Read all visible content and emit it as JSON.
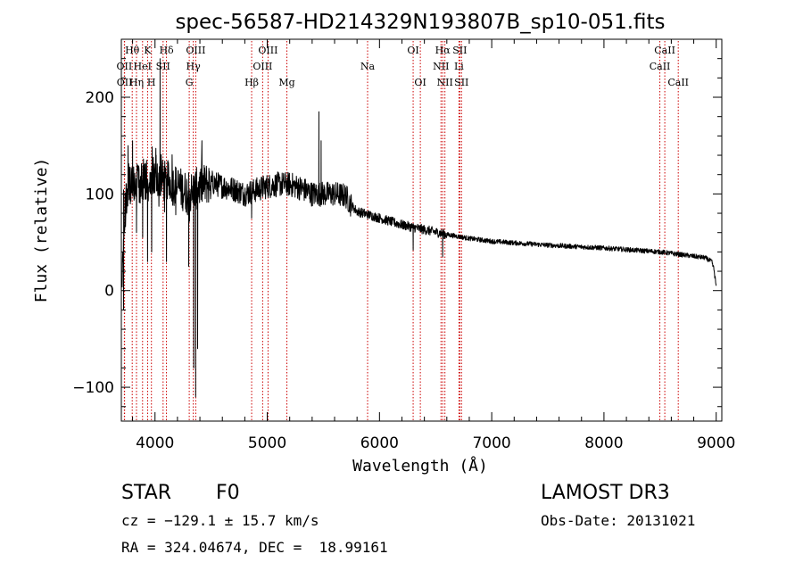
{
  "chart_data": {
    "type": "line",
    "title": "spec-56587-HD214329N193807B_sp10-051.fits",
    "xlabel": "Wavelength (Å)",
    "ylabel": "Flux (relative)",
    "xlim": [
      3700,
      9050
    ],
    "ylim": [
      -135,
      260
    ],
    "xticks": [
      4000,
      5000,
      6000,
      7000,
      8000,
      9000
    ],
    "yticks": [
      -100,
      0,
      100,
      200
    ],
    "xtick_labels": [
      "4000",
      "5000",
      "6000",
      "7000",
      "8000",
      "9000"
    ],
    "ytick_labels": [
      "−100",
      "0",
      "100",
      "200"
    ],
    "line_color": "#000000",
    "marker_color": "#cc0000",
    "series": [
      {
        "name": "flux",
        "continuum": [
          [
            3705,
            0
          ],
          [
            3715,
            40
          ],
          [
            3730,
            80
          ],
          [
            3760,
            110
          ],
          [
            3800,
            105
          ],
          [
            3850,
            110
          ],
          [
            3900,
            115
          ],
          [
            3950,
            112
          ],
          [
            4000,
            118
          ],
          [
            4050,
            115
          ],
          [
            4100,
            112
          ],
          [
            4150,
            110
          ],
          [
            4200,
            108
          ],
          [
            4300,
            100
          ],
          [
            4400,
            108
          ],
          [
            4500,
            112
          ],
          [
            4600,
            108
          ],
          [
            4700,
            105
          ],
          [
            4800,
            100
          ],
          [
            4900,
            104
          ],
          [
            5000,
            108
          ],
          [
            5100,
            110
          ],
          [
            5200,
            110
          ],
          [
            5300,
            106
          ],
          [
            5400,
            100
          ],
          [
            5500,
            100
          ],
          [
            5600,
            100
          ],
          [
            5700,
            98
          ],
          [
            5750,
            88
          ],
          [
            5800,
            82
          ],
          [
            6000,
            75
          ],
          [
            6200,
            68
          ],
          [
            6400,
            63
          ],
          [
            6600,
            58
          ],
          [
            6800,
            54
          ],
          [
            7000,
            51
          ],
          [
            7500,
            47
          ],
          [
            8000,
            44
          ],
          [
            8500,
            40
          ],
          [
            8700,
            37
          ],
          [
            8900,
            34
          ],
          [
            8960,
            30
          ],
          [
            8980,
            22
          ],
          [
            9000,
            4
          ]
        ],
        "features": [
          {
            "x": 3720,
            "y": -20
          },
          {
            "x": 3760,
            "y": 150
          },
          {
            "x": 3800,
            "y": 155
          },
          {
            "x": 3835,
            "y": 60
          },
          {
            "x": 3890,
            "y": 55
          },
          {
            "x": 3934,
            "y": 30
          },
          {
            "x": 3970,
            "y": 40
          },
          {
            "x": 4010,
            "y": 140
          },
          {
            "x": 4045,
            "y": 240
          },
          {
            "x": 4102,
            "y": 30
          },
          {
            "x": 4300,
            "y": 25
          },
          {
            "x": 4345,
            "y": -80
          },
          {
            "x": 4362,
            "y": -110
          },
          {
            "x": 4380,
            "y": -60
          },
          {
            "x": 4861,
            "y": 75
          },
          {
            "x": 5460,
            "y": 185
          },
          {
            "x": 5480,
            "y": 155
          },
          {
            "x": 6300,
            "y": 42
          },
          {
            "x": 6563,
            "y": 35
          }
        ]
      }
    ],
    "line_markers": [
      {
        "label": "Hθ",
        "x": 3797,
        "row": 0
      },
      {
        "label": "OII",
        "x": 3727,
        "row": 1
      },
      {
        "label": "OII",
        "x": 3729,
        "row": 2
      },
      {
        "label": "K",
        "x": 3934,
        "row": 0
      },
      {
        "label": "HeI",
        "x": 3889,
        "row": 1
      },
      {
        "label": "Hη",
        "x": 3835,
        "row": 2
      },
      {
        "label": "Hδ",
        "x": 4102,
        "row": 0
      },
      {
        "label": "SII",
        "x": 4072,
        "row": 1
      },
      {
        "label": "H",
        "x": 3968,
        "row": 2
      },
      {
        "label": "OIII",
        "x": 4363,
        "row": 0
      },
      {
        "label": "Hγ",
        "x": 4341,
        "row": 1
      },
      {
        "label": "G",
        "x": 4305,
        "row": 2
      },
      {
        "label": "OIII",
        "x": 5007,
        "row": 0
      },
      {
        "label": "OIII",
        "x": 4959,
        "row": 1
      },
      {
        "label": "Hβ",
        "x": 4861,
        "row": 2
      },
      {
        "label": "Mg",
        "x": 5175,
        "row": 2
      },
      {
        "label": "Na",
        "x": 5894,
        "row": 1
      },
      {
        "label": "OI",
        "x": 6300,
        "row": 0
      },
      {
        "label": "OI",
        "x": 6364,
        "row": 2
      },
      {
        "label": "Hα",
        "x": 6563,
        "row": 0
      },
      {
        "label": "SII",
        "x": 6716,
        "row": 0
      },
      {
        "label": "NII",
        "x": 6548,
        "row": 1
      },
      {
        "label": "Li",
        "x": 6708,
        "row": 1
      },
      {
        "label": "NII",
        "x": 6583,
        "row": 2
      },
      {
        "label": "SII",
        "x": 6731,
        "row": 2
      },
      {
        "label": "CaII",
        "x": 8542,
        "row": 0
      },
      {
        "label": "CaII",
        "x": 8498,
        "row": 1
      },
      {
        "label": "CaII",
        "x": 8662,
        "row": 2
      }
    ]
  },
  "info": {
    "class_label": "STAR",
    "subclass": "F0",
    "survey": "LAMOST DR3",
    "redshift_line": "cz = −129.1 ± 15.7 km/s",
    "obs_date": "Obs-Date: 20131021",
    "coords_line": "RA = 324.04674, DEC =  18.99161"
  }
}
